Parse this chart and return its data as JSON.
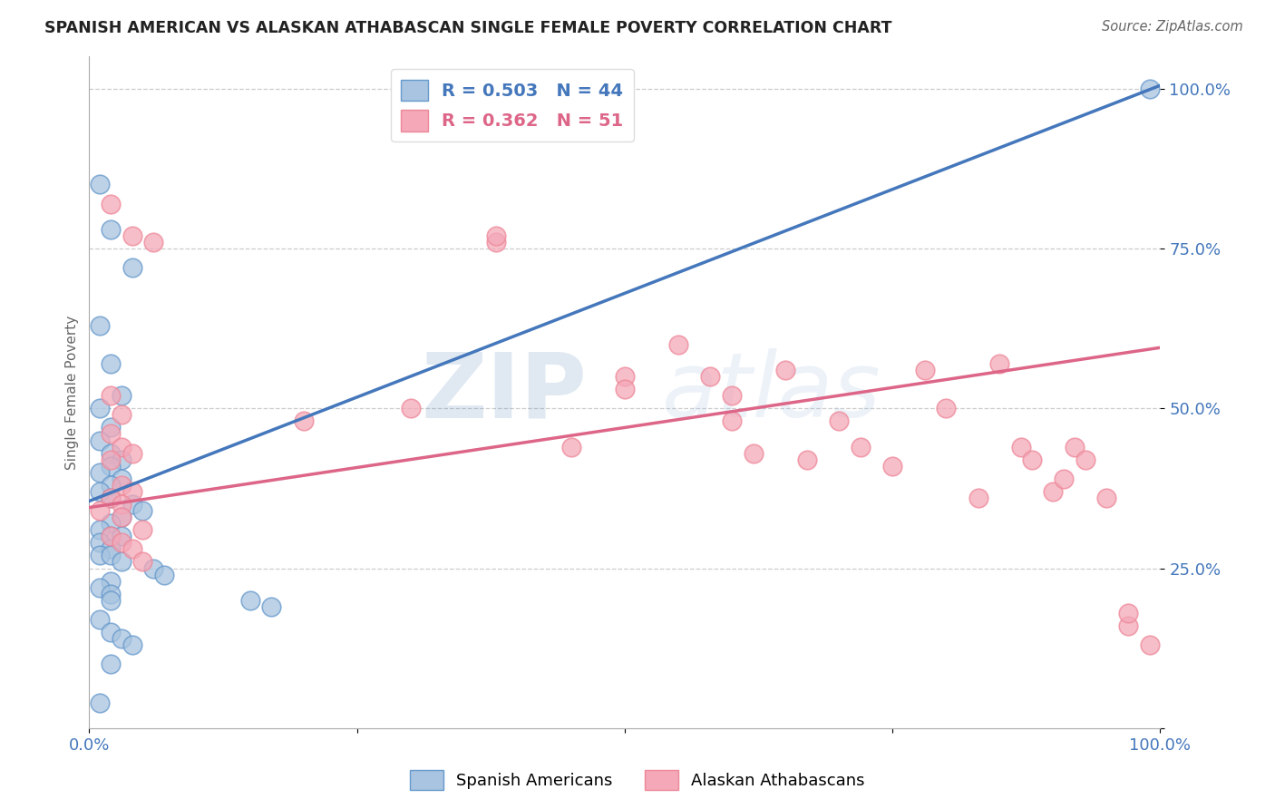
{
  "title": "SPANISH AMERICAN VS ALASKAN ATHABASCAN SINGLE FEMALE POVERTY CORRELATION CHART",
  "source": "Source: ZipAtlas.com",
  "ylabel": "Single Female Poverty",
  "blue_label": "Spanish Americans",
  "pink_label": "Alaskan Athabascans",
  "blue_R": 0.503,
  "blue_N": 44,
  "pink_R": 0.362,
  "pink_N": 51,
  "blue_fill_color": "#A8C4E0",
  "pink_fill_color": "#F4A8B8",
  "blue_edge_color": "#6699CC",
  "pink_edge_color": "#EE8899",
  "blue_line_color": "#4477BB",
  "pink_line_color": "#DD6688",
  "background_color": "#FFFFFF",
  "watermark_zip": "ZIP",
  "watermark_atlas": "atlas",
  "grid_color": "#CCCCCC",
  "blue_x": [
    0.01,
    0.02,
    0.04,
    0.01,
    0.02,
    0.03,
    0.01,
    0.02,
    0.01,
    0.02,
    0.03,
    0.02,
    0.01,
    0.03,
    0.02,
    0.01,
    0.02,
    0.04,
    0.05,
    0.03,
    0.02,
    0.01,
    0.02,
    0.03,
    0.01,
    0.02,
    0.01,
    0.02,
    0.03,
    0.06,
    0.07,
    0.02,
    0.01,
    0.02,
    0.02,
    0.15,
    0.17,
    0.01,
    0.02,
    0.03,
    0.04,
    0.02,
    0.01,
    0.99
  ],
  "blue_y": [
    0.85,
    0.78,
    0.72,
    0.63,
    0.57,
    0.52,
    0.5,
    0.47,
    0.45,
    0.43,
    0.42,
    0.41,
    0.4,
    0.39,
    0.38,
    0.37,
    0.36,
    0.35,
    0.34,
    0.33,
    0.32,
    0.31,
    0.3,
    0.3,
    0.29,
    0.28,
    0.27,
    0.27,
    0.26,
    0.25,
    0.24,
    0.23,
    0.22,
    0.21,
    0.2,
    0.2,
    0.19,
    0.17,
    0.15,
    0.14,
    0.13,
    0.1,
    0.04,
    1.0
  ],
  "pink_x": [
    0.02,
    0.04,
    0.06,
    0.02,
    0.03,
    0.02,
    0.03,
    0.04,
    0.02,
    0.03,
    0.04,
    0.02,
    0.03,
    0.01,
    0.03,
    0.05,
    0.02,
    0.03,
    0.04,
    0.05,
    0.2,
    0.3,
    0.38,
    0.38,
    0.45,
    0.5,
    0.5,
    0.55,
    0.58,
    0.6,
    0.6,
    0.62,
    0.65,
    0.67,
    0.7,
    0.72,
    0.75,
    0.78,
    0.8,
    0.83,
    0.85,
    0.87,
    0.88,
    0.9,
    0.91,
    0.92,
    0.93,
    0.95,
    0.97,
    0.97,
    0.99
  ],
  "pink_y": [
    0.82,
    0.77,
    0.76,
    0.52,
    0.49,
    0.46,
    0.44,
    0.43,
    0.42,
    0.38,
    0.37,
    0.36,
    0.35,
    0.34,
    0.33,
    0.31,
    0.3,
    0.29,
    0.28,
    0.26,
    0.48,
    0.5,
    0.76,
    0.77,
    0.44,
    0.55,
    0.53,
    0.6,
    0.55,
    0.52,
    0.48,
    0.43,
    0.56,
    0.42,
    0.48,
    0.44,
    0.41,
    0.56,
    0.5,
    0.36,
    0.57,
    0.44,
    0.42,
    0.37,
    0.39,
    0.44,
    0.42,
    0.36,
    0.16,
    0.18,
    0.13
  ],
  "blue_intercept": 0.355,
  "blue_slope": 0.65,
  "pink_intercept": 0.345,
  "pink_slope": 0.25,
  "xlim": [
    0.0,
    1.0
  ],
  "ylim": [
    0.0,
    1.05
  ],
  "ytick_positions": [
    0.0,
    0.25,
    0.5,
    0.75,
    1.0
  ],
  "ytick_labels": [
    "",
    "25.0%",
    "50.0%",
    "75.0%",
    "100.0%"
  ],
  "xtick_positions": [
    0.0,
    0.25,
    0.5,
    0.75,
    1.0
  ],
  "xtick_labels": [
    "0.0%",
    "",
    "",
    "",
    "100.0%"
  ]
}
